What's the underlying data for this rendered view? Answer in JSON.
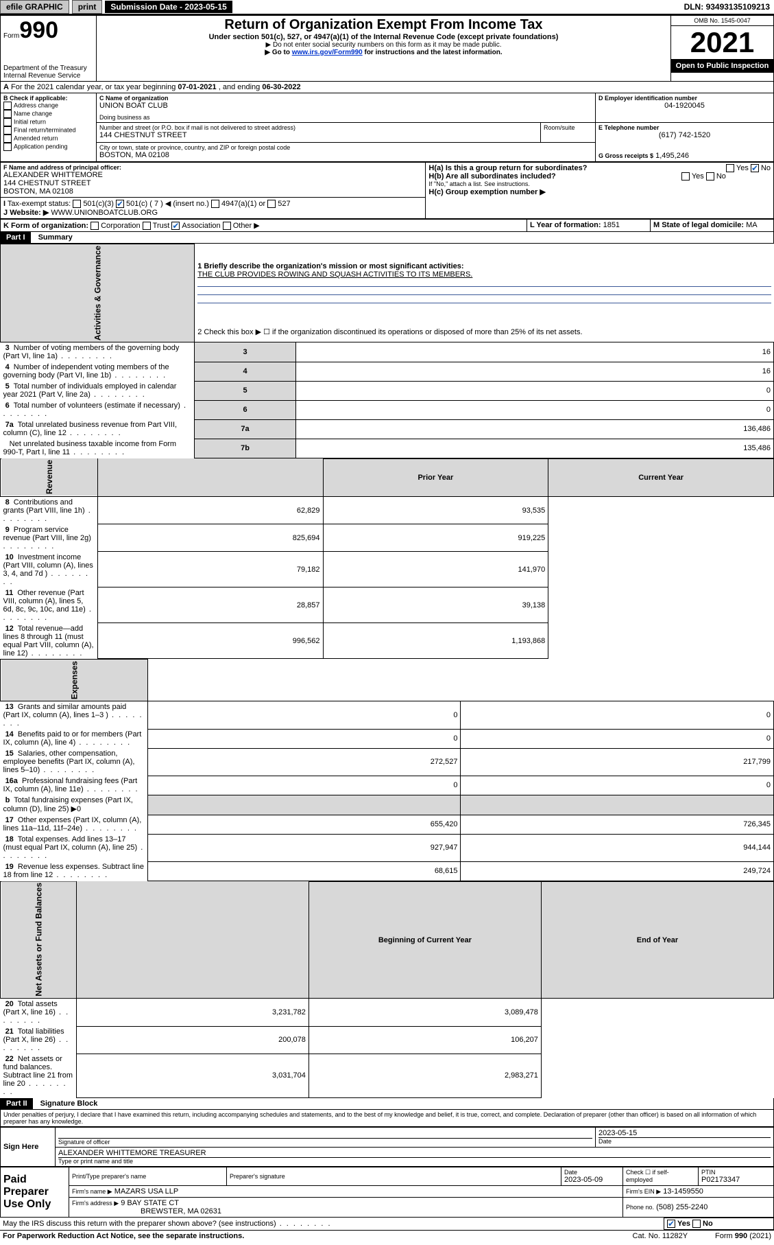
{
  "topbar": {
    "efile": "efile GRAPHIC",
    "print": "print",
    "sub_label": "Submission Date - ",
    "sub_date": "2023-05-15",
    "dln_label": "DLN: ",
    "dln": "93493135109213"
  },
  "header": {
    "form_word": "Form",
    "form_num": "990",
    "dept": "Department of the Treasury",
    "irs": "Internal Revenue Service",
    "title": "Return of Organization Exempt From Income Tax",
    "sub1": "Under section 501(c), 527, or 4947(a)(1) of the Internal Revenue Code (except private foundations)",
    "sub2": "▶ Do not enter social security numbers on this form as it may be made public.",
    "sub3_pre": "▶ Go to ",
    "sub3_link": "www.irs.gov/Form990",
    "sub3_post": " for instructions and the latest information.",
    "omb": "OMB No. 1545-0047",
    "year": "2021",
    "open": "Open to Public Inspection"
  },
  "A": {
    "text_pre": "For the 2021 calendar year, or tax year beginning ",
    "start": "07-01-2021",
    "mid": " , and ending ",
    "end": "06-30-2022"
  },
  "B": {
    "label": "B Check if applicable:",
    "items": [
      "Address change",
      "Name change",
      "Initial return",
      "Final return/terminated",
      "Amended return",
      "Application pending"
    ]
  },
  "C": {
    "label": "C Name of organization",
    "name": "UNION BOAT CLUB",
    "dba_label": "Doing business as",
    "street_label": "Number and street (or P.O. box if mail is not delivered to street address)",
    "room_label": "Room/suite",
    "street": "144 CHESTNUT STREET",
    "city_label": "City or town, state or province, country, and ZIP or foreign postal code",
    "city": "BOSTON, MA  02108"
  },
  "D": {
    "label": "D Employer identification number",
    "value": "04-1920045"
  },
  "E": {
    "label": "E Telephone number",
    "value": "(617) 742-1520"
  },
  "G": {
    "label": "G Gross receipts $",
    "value": "1,495,246"
  },
  "F": {
    "label": "F Name and address of principal officer:",
    "name": "ALEXANDER WHITTEMORE",
    "street": "144 CHESTNUT STREET",
    "city": "BOSTON, MA  02108"
  },
  "H": {
    "a_label": "H(a)  Is this a group return for subordinates?",
    "b_label": "H(b)  Are all subordinates included?",
    "b_note": "If \"No,\" attach a list. See instructions.",
    "c_label": "H(c)  Group exemption number ▶",
    "yes": "Yes",
    "no": "No"
  },
  "I": {
    "label": "Tax-exempt status:",
    "opts": [
      "501(c)(3)",
      "501(c) ( 7 ) ◀ (insert no.)",
      "4947(a)(1) or",
      "527"
    ]
  },
  "J": {
    "label": "Website: ▶",
    "value": "WWW.UNIONBOATCLUB.ORG"
  },
  "K": {
    "label": "K Form of organization:",
    "opts": [
      "Corporation",
      "Trust",
      "Association",
      "Other ▶"
    ]
  },
  "L": {
    "label": "L Year of formation:",
    "value": "1851"
  },
  "M": {
    "label": "M State of legal domicile:",
    "value": "MA"
  },
  "part1": {
    "hdr": "Part I",
    "title": "Summary",
    "vert_gov": "Activities & Governance",
    "vert_rev": "Revenue",
    "vert_exp": "Expenses",
    "vert_net": "Net Assets or Fund Balances",
    "q1_label": "1  Briefly describe the organization's mission or most significant activities:",
    "q1_val": "THE CLUB PROVIDES ROWING AND SQUASH ACTIVITIES TO ITS MEMBERS.",
    "q2": "2  Check this box ▶ ☐  if the organization discontinued its operations or disposed of more than 25% of its net assets.",
    "rows_gov": [
      {
        "n": "3",
        "t": "Number of voting members of the governing body (Part VI, line 1a)",
        "k": "3",
        "v": "16"
      },
      {
        "n": "4",
        "t": "Number of independent voting members of the governing body (Part VI, line 1b)",
        "k": "4",
        "v": "16"
      },
      {
        "n": "5",
        "t": "Total number of individuals employed in calendar year 2021 (Part V, line 2a)",
        "k": "5",
        "v": "0"
      },
      {
        "n": "6",
        "t": "Total number of volunteers (estimate if necessary)",
        "k": "6",
        "v": "0"
      },
      {
        "n": "7a",
        "t": "Total unrelated business revenue from Part VIII, column (C), line 12",
        "k": "7a",
        "v": "136,486"
      },
      {
        "n": "",
        "t": "Net unrelated business taxable income from Form 990-T, Part I, line 11",
        "k": "7b",
        "v": "135,486"
      }
    ],
    "col_prior": "Prior Year",
    "col_curr": "Current Year",
    "rows_rev": [
      {
        "n": "8",
        "t": "Contributions and grants (Part VIII, line 1h)",
        "p": "62,829",
        "c": "93,535"
      },
      {
        "n": "9",
        "t": "Program service revenue (Part VIII, line 2g)",
        "p": "825,694",
        "c": "919,225"
      },
      {
        "n": "10",
        "t": "Investment income (Part VIII, column (A), lines 3, 4, and 7d )",
        "p": "79,182",
        "c": "141,970"
      },
      {
        "n": "11",
        "t": "Other revenue (Part VIII, column (A), lines 5, 6d, 8c, 9c, 10c, and 11e)",
        "p": "28,857",
        "c": "39,138"
      },
      {
        "n": "12",
        "t": "Total revenue—add lines 8 through 11 (must equal Part VIII, column (A), line 12)",
        "p": "996,562",
        "c": "1,193,868"
      }
    ],
    "rows_exp": [
      {
        "n": "13",
        "t": "Grants and similar amounts paid (Part IX, column (A), lines 1–3 )",
        "p": "0",
        "c": "0"
      },
      {
        "n": "14",
        "t": "Benefits paid to or for members (Part IX, column (A), line 4)",
        "p": "0",
        "c": "0"
      },
      {
        "n": "15",
        "t": "Salaries, other compensation, employee benefits (Part IX, column (A), lines 5–10)",
        "p": "272,527",
        "c": "217,799"
      },
      {
        "n": "16a",
        "t": "Professional fundraising fees (Part IX, column (A), line 11e)",
        "p": "0",
        "c": "0"
      },
      {
        "n": "b",
        "t": "Total fundraising expenses (Part IX, column (D), line 25) ▶0",
        "p": "",
        "c": ""
      },
      {
        "n": "17",
        "t": "Other expenses (Part IX, column (A), lines 11a–11d, 11f–24e)",
        "p": "655,420",
        "c": "726,345"
      },
      {
        "n": "18",
        "t": "Total expenses. Add lines 13–17 (must equal Part IX, column (A), line 25)",
        "p": "927,947",
        "c": "944,144"
      },
      {
        "n": "19",
        "t": "Revenue less expenses. Subtract line 18 from line 12",
        "p": "68,615",
        "c": "249,724"
      }
    ],
    "col_beg": "Beginning of Current Year",
    "col_end": "End of Year",
    "rows_net": [
      {
        "n": "20",
        "t": "Total assets (Part X, line 16)",
        "p": "3,231,782",
        "c": "3,089,478"
      },
      {
        "n": "21",
        "t": "Total liabilities (Part X, line 26)",
        "p": "200,078",
        "c": "106,207"
      },
      {
        "n": "22",
        "t": "Net assets or fund balances. Subtract line 21 from line 20",
        "p": "3,031,704",
        "c": "2,983,271"
      }
    ]
  },
  "part2": {
    "hdr": "Part II",
    "title": "Signature Block",
    "decl": "Under penalties of perjury, I declare that I have examined this return, including accompanying schedules and statements, and to the best of my knowledge and belief, it is true, correct, and complete. Declaration of preparer (other than officer) is based on all information of which preparer has any knowledge.",
    "sign_here": "Sign Here",
    "sig_officer": "Signature of officer",
    "date": "Date",
    "sig_date": "2023-05-15",
    "officer_name": "ALEXANDER WHITTEMORE  TREASURER",
    "type_name": "Type or print name and title",
    "paid": "Paid Preparer Use Only",
    "pt_name": "Print/Type preparer's name",
    "prep_sig": "Preparer's signature",
    "prep_date_lbl": "Date",
    "prep_date": "2023-05-09",
    "check_if": "Check ☐ if self-employed",
    "ptin_lbl": "PTIN",
    "ptin": "P02173347",
    "firm_name_lbl": "Firm's name   ▶",
    "firm_name": "MAZARS USA LLP",
    "firm_ein_lbl": "Firm's EIN ▶",
    "firm_ein": "13-1459550",
    "firm_addr_lbl": "Firm's address ▶",
    "firm_addr1": "9 BAY STATE CT",
    "firm_addr2": "BREWSTER, MA  02631",
    "phone_lbl": "Phone no.",
    "phone": "(508) 255-2240",
    "discuss": "May the IRS discuss this return with the preparer shown above? (see instructions)",
    "yes": "Yes",
    "no": "No",
    "paperwork": "For Paperwork Reduction Act Notice, see the separate instructions.",
    "catno": "Cat. No. 11282Y",
    "formno": "Form 990 (2021)"
  }
}
